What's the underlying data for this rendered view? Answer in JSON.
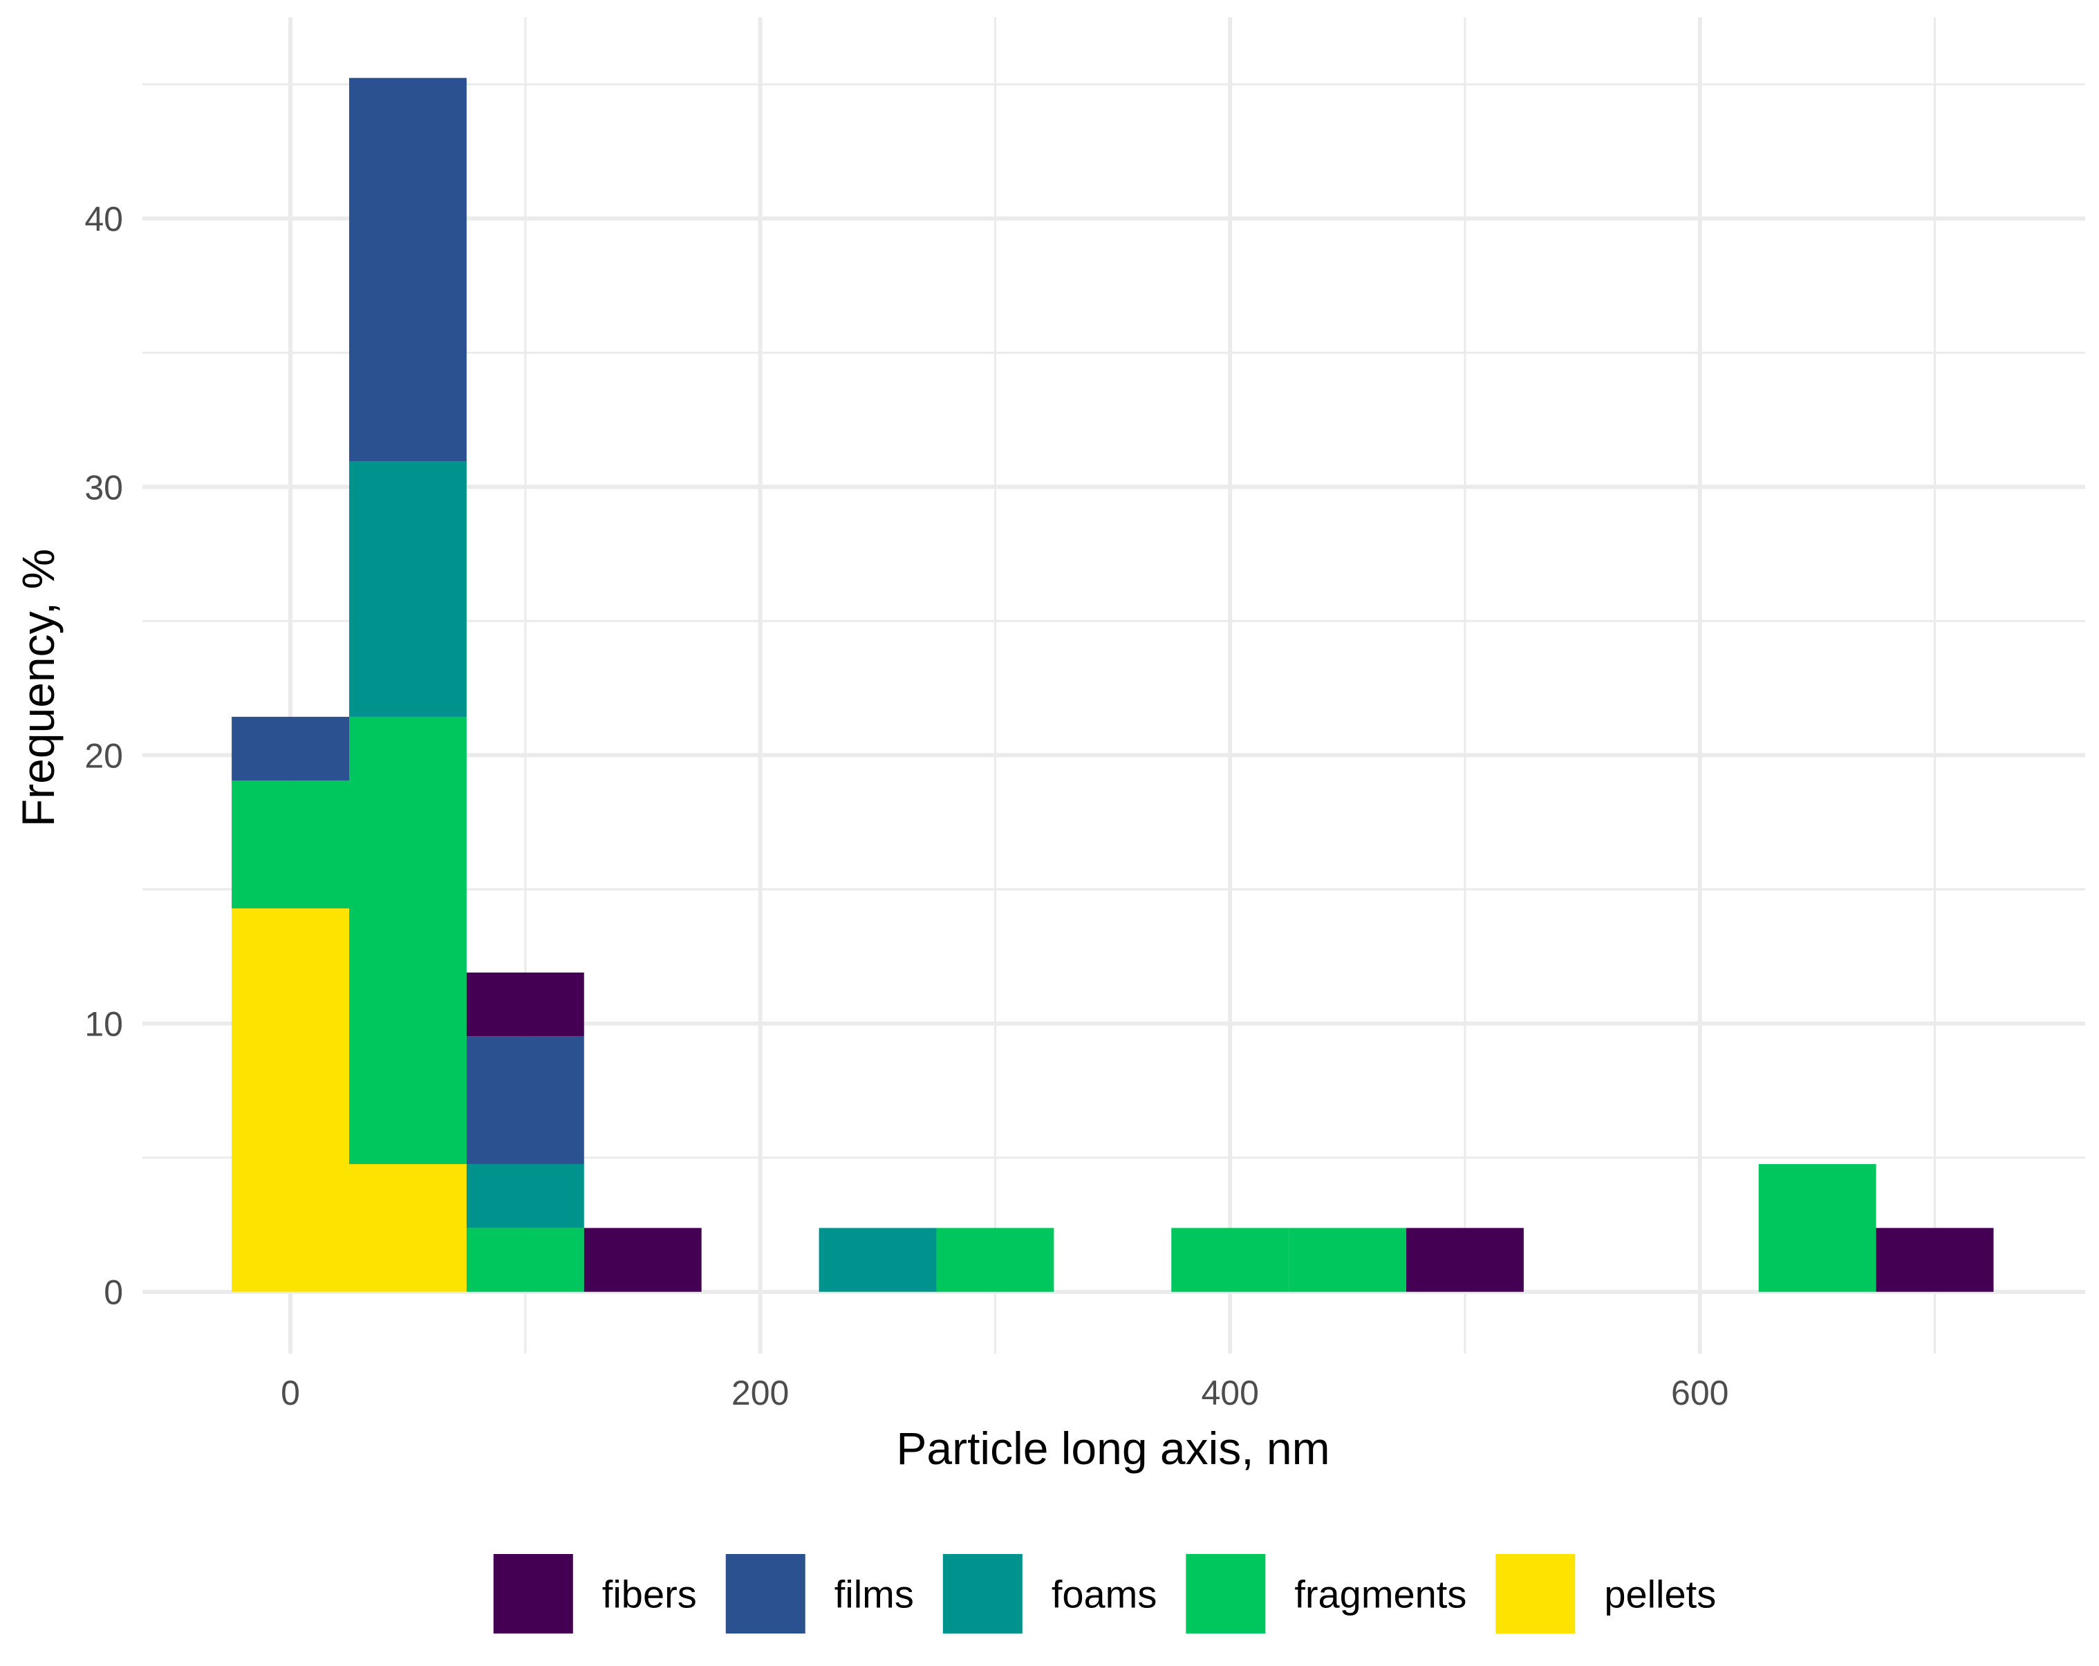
{
  "chart_data": {
    "type": "bar",
    "subtype": "stacked-histogram",
    "title": "",
    "xlabel": "Particle long axis, nm",
    "ylabel": "Frequency, %",
    "xlim": [
      -63,
      764
    ],
    "ylim": [
      -2.3,
      47.5
    ],
    "binwidth": 50,
    "x_ticks": [
      {
        "value": 0,
        "label": "0"
      },
      {
        "value": 200,
        "label": "200"
      },
      {
        "value": 400,
        "label": "400"
      },
      {
        "value": 600,
        "label": "600"
      }
    ],
    "y_ticks": [
      {
        "value": 0,
        "label": "0"
      },
      {
        "value": 10,
        "label": "10"
      },
      {
        "value": 20,
        "label": "20"
      },
      {
        "value": 30,
        "label": "30"
      },
      {
        "value": 40,
        "label": "40"
      }
    ],
    "bins": [
      0,
      50,
      100,
      150,
      200,
      250,
      300,
      350,
      400,
      450,
      500,
      550,
      600,
      650,
      700
    ],
    "stack_order": [
      "pellets",
      "fragments",
      "foams",
      "films",
      "fibers"
    ],
    "series": [
      {
        "name": "fibers",
        "color": "#440154",
        "values": [
          0,
          0,
          2.38,
          2.38,
          0,
          0,
          0,
          0,
          0,
          0,
          2.38,
          0,
          0,
          0,
          2.38
        ]
      },
      {
        "name": "films",
        "color": "#2C5190",
        "values": [
          2.38,
          14.29,
          4.76,
          0,
          0,
          0,
          0,
          0,
          0,
          0,
          0,
          0,
          0,
          0,
          0
        ]
      },
      {
        "name": "foams",
        "color": "#00928C",
        "values": [
          0,
          9.52,
          2.38,
          0,
          0,
          2.38,
          0,
          0,
          0,
          0,
          0,
          0,
          0,
          0,
          0
        ]
      },
      {
        "name": "fragments",
        "color": "#00C65E",
        "values": [
          4.76,
          16.67,
          2.38,
          0,
          0,
          0,
          2.38,
          0,
          2.38,
          2.38,
          0,
          0,
          0,
          4.76,
          0
        ]
      },
      {
        "name": "pellets",
        "color": "#FDE300",
        "values": [
          14.29,
          4.76,
          0,
          0,
          0,
          0,
          0,
          0,
          0,
          0,
          0,
          0,
          0,
          0,
          0
        ]
      }
    ],
    "legend": {
      "position": "bottom",
      "items": [
        {
          "label": "fibers",
          "color": "#440154"
        },
        {
          "label": "films",
          "color": "#2C5190"
        },
        {
          "label": "foams",
          "color": "#00928C"
        },
        {
          "label": "fragments",
          "color": "#00C65E"
        },
        {
          "label": "pellets",
          "color": "#FDE300"
        }
      ]
    },
    "grid": true
  }
}
